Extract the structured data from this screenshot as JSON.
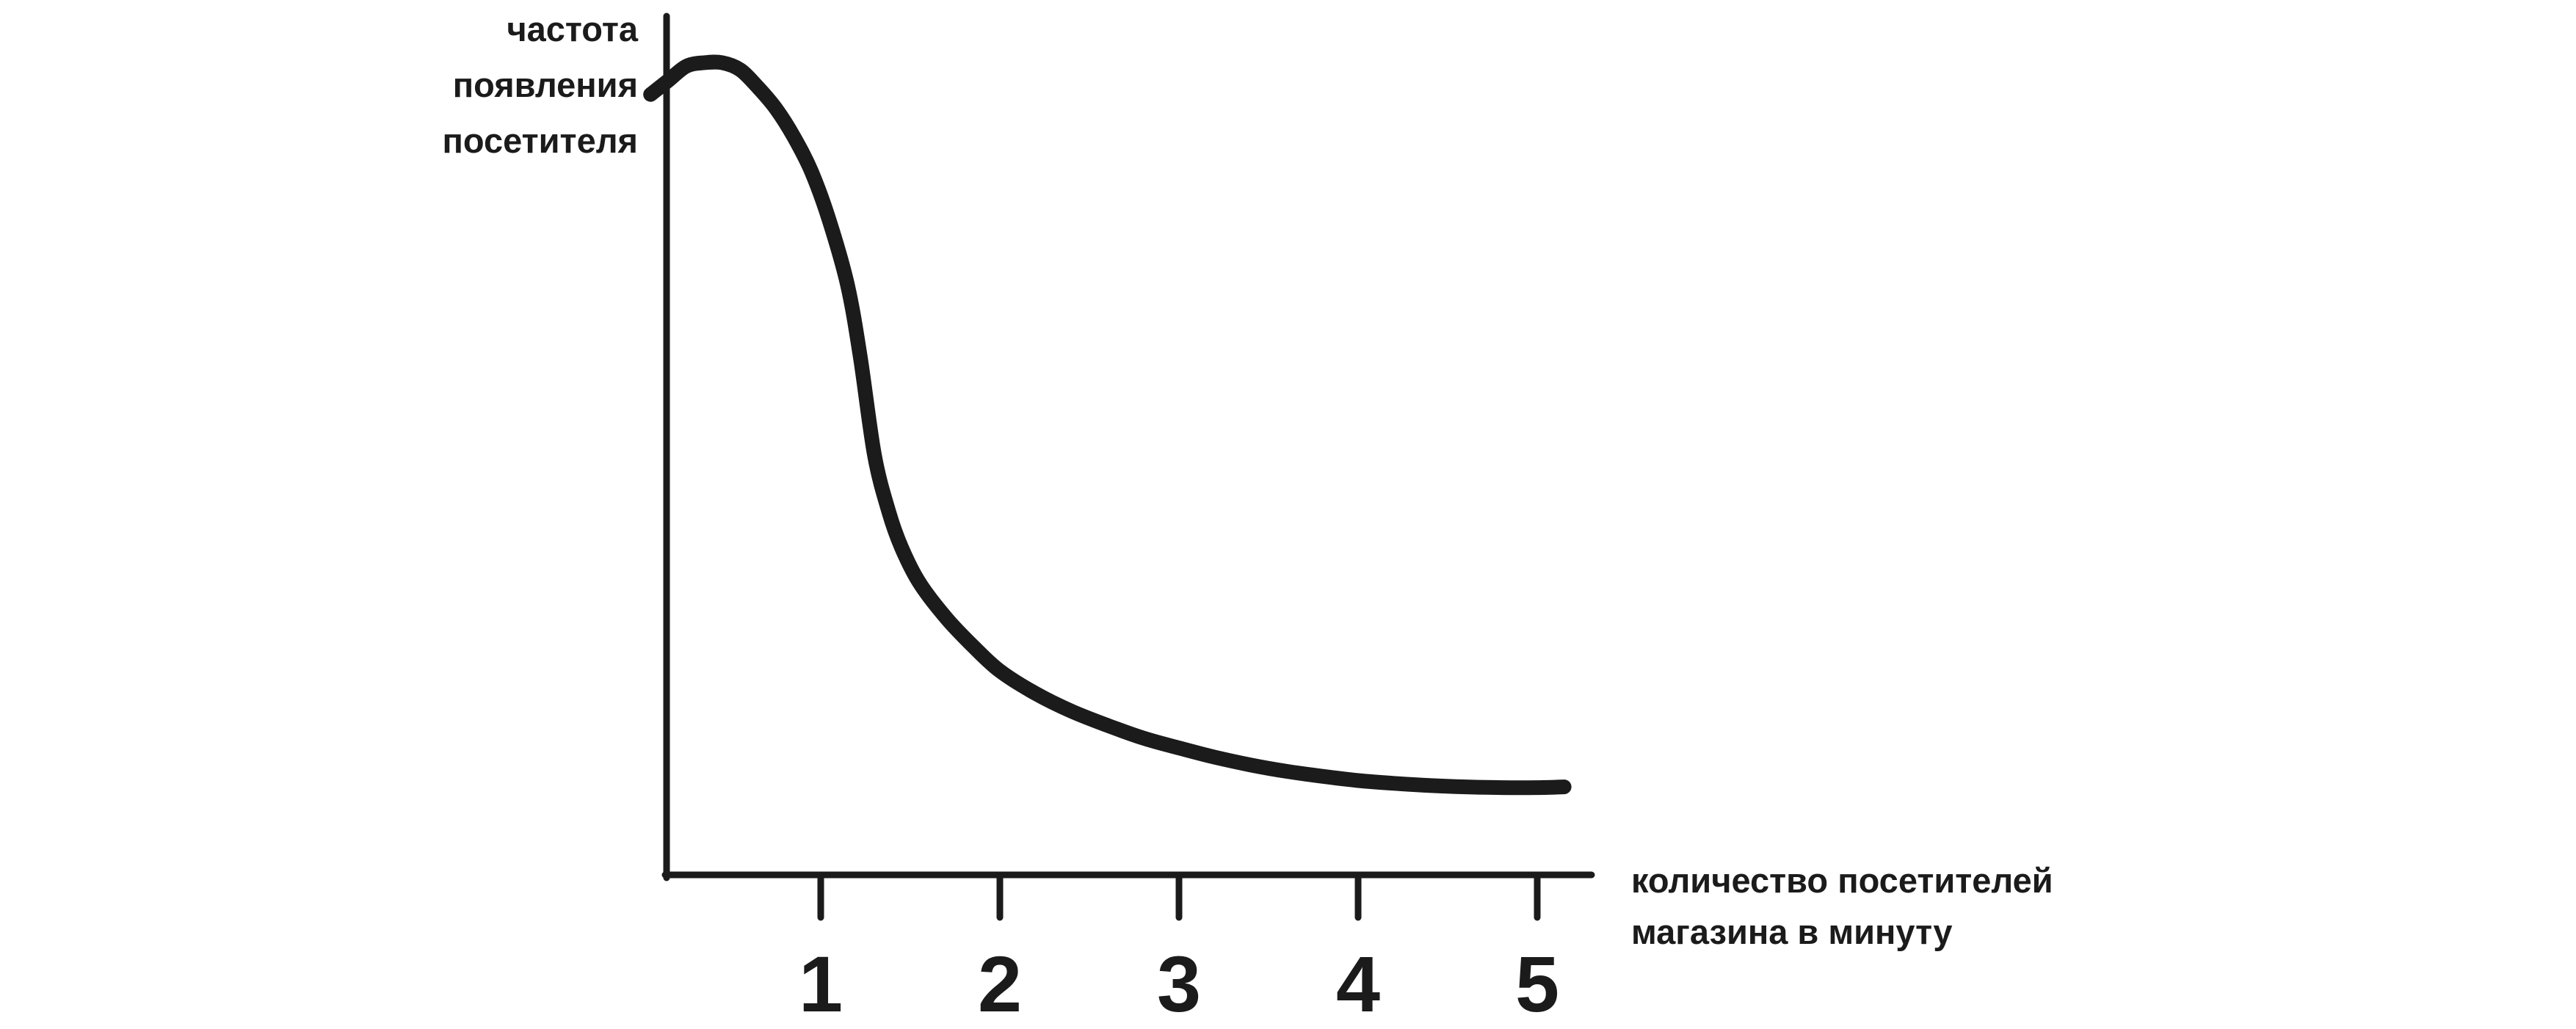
{
  "chart_data": {
    "type": "line",
    "title": "",
    "ylabel_lines": [
      "частота",
      "появления",
      "посетителя"
    ],
    "xlabel_lines": [
      "количество посетителей",
      "магазина в минуту"
    ],
    "x_ticks": [
      "1",
      "2",
      "3",
      "4",
      "5"
    ],
    "xlim": [
      0.05,
      5.35
    ],
    "ylim": [
      0,
      1.1
    ],
    "grid": false,
    "legend": "none",
    "series": [
      {
        "x": [
          0.05,
          0.15,
          0.25,
          0.35,
          0.45,
          0.55,
          0.65,
          0.75,
          0.85,
          0.95,
          1.05,
          1.15,
          1.22,
          1.3,
          1.38,
          1.45,
          1.55,
          1.7,
          1.85,
          2.0,
          2.2,
          2.4,
          2.6,
          2.8,
          3.0,
          3.2,
          3.4,
          3.6,
          3.8,
          4.0,
          4.2,
          4.4,
          4.6,
          4.8,
          5.0,
          5.15
        ],
        "y": [
          1.01,
          1.03,
          1.05,
          1.055,
          1.055,
          1.045,
          1.02,
          0.99,
          0.95,
          0.9,
          0.83,
          0.74,
          0.64,
          0.5,
          0.42,
          0.37,
          0.32,
          0.27,
          0.23,
          0.195,
          0.163,
          0.138,
          0.118,
          0.1,
          0.086,
          0.073,
          0.062,
          0.053,
          0.046,
          0.04,
          0.036,
          0.033,
          0.031,
          0.03,
          0.03,
          0.031
        ],
        "color": "#1b1b1b"
      }
    ]
  }
}
